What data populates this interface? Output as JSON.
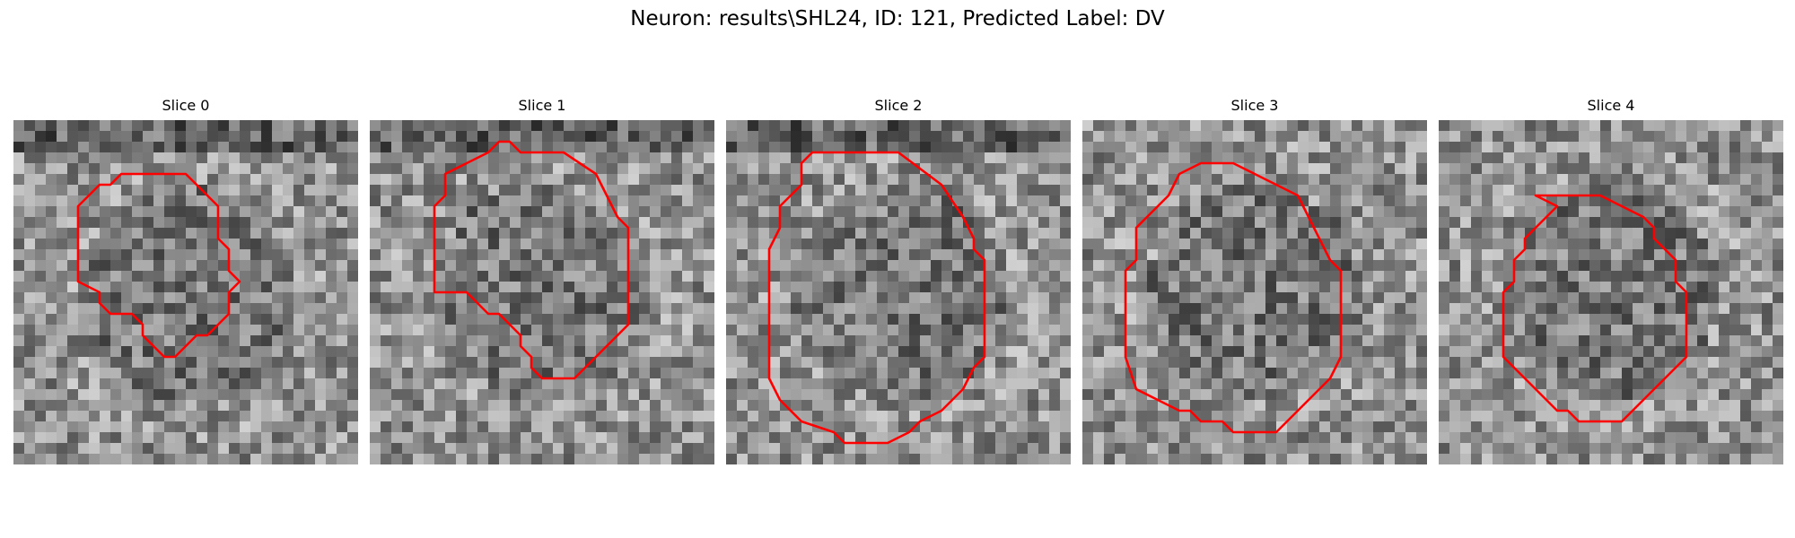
{
  "figure": {
    "title": "Neuron: results\\SHL24, ID: 121, Predicted Label: DV"
  },
  "contour_color": "#ff0000",
  "slices": [
    {
      "title": "Slice 0",
      "contour": [
        [
          10,
          5
        ],
        [
          16,
          5
        ],
        [
          19,
          8
        ],
        [
          19,
          11
        ],
        [
          20,
          12
        ],
        [
          20,
          14
        ],
        [
          21,
          15
        ],
        [
          20,
          16
        ],
        [
          20,
          18
        ],
        [
          19,
          19
        ],
        [
          18,
          20
        ],
        [
          17,
          20
        ],
        [
          16,
          21
        ],
        [
          15,
          22
        ],
        [
          14,
          22
        ],
        [
          13,
          21
        ],
        [
          12,
          20
        ],
        [
          12,
          19
        ],
        [
          11,
          18
        ],
        [
          9,
          18
        ],
        [
          8,
          17
        ],
        [
          8,
          16
        ],
        [
          6,
          15
        ],
        [
          6,
          14
        ],
        [
          6,
          8
        ],
        [
          7,
          7
        ],
        [
          8,
          6
        ],
        [
          9,
          6
        ]
      ]
    },
    {
      "title": "Slice 1",
      "contour": [
        [
          11,
          3
        ],
        [
          12,
          2
        ],
        [
          13,
          2
        ],
        [
          14,
          3
        ],
        [
          18,
          3
        ],
        [
          21,
          5
        ],
        [
          23,
          9
        ],
        [
          24,
          10
        ],
        [
          24,
          19
        ],
        [
          20,
          23
        ],
        [
          19,
          24
        ],
        [
          16,
          24
        ],
        [
          15,
          23
        ],
        [
          15,
          22
        ],
        [
          14,
          21
        ],
        [
          14,
          20
        ],
        [
          13,
          19
        ],
        [
          12,
          18
        ],
        [
          11,
          18
        ],
        [
          10,
          17
        ],
        [
          9,
          16
        ],
        [
          6,
          16
        ],
        [
          6,
          10
        ],
        [
          6,
          8
        ],
        [
          7,
          7
        ],
        [
          7,
          5
        ],
        [
          9,
          4
        ]
      ]
    },
    {
      "title": "Slice 2",
      "contour": [
        [
          8,
          3
        ],
        [
          16,
          3
        ],
        [
          20,
          6
        ],
        [
          22,
          9
        ],
        [
          23,
          11
        ],
        [
          23,
          12
        ],
        [
          24,
          13
        ],
        [
          24,
          22
        ],
        [
          23,
          23
        ],
        [
          22,
          25
        ],
        [
          20,
          27
        ],
        [
          18,
          28
        ],
        [
          17,
          29
        ],
        [
          15,
          30
        ],
        [
          11,
          30
        ],
        [
          10,
          29
        ],
        [
          7,
          28
        ],
        [
          5,
          26
        ],
        [
          4,
          24
        ],
        [
          4,
          22
        ],
        [
          4,
          12
        ],
        [
          5,
          10
        ],
        [
          5,
          8
        ],
        [
          6,
          7
        ],
        [
          7,
          6
        ],
        [
          7,
          4
        ]
      ]
    },
    {
      "title": "Slice 3",
      "contour": [
        [
          11,
          4
        ],
        [
          14,
          4
        ],
        [
          16,
          5
        ],
        [
          18,
          6
        ],
        [
          20,
          7
        ],
        [
          21,
          9
        ],
        [
          22,
          11
        ],
        [
          23,
          13
        ],
        [
          24,
          14
        ],
        [
          24,
          22
        ],
        [
          23,
          24
        ],
        [
          21,
          26
        ],
        [
          20,
          27
        ],
        [
          18,
          29
        ],
        [
          14,
          29
        ],
        [
          13,
          28
        ],
        [
          11,
          28
        ],
        [
          10,
          27
        ],
        [
          9,
          27
        ],
        [
          7,
          26
        ],
        [
          5,
          25
        ],
        [
          4,
          22
        ],
        [
          4,
          14
        ],
        [
          5,
          13
        ],
        [
          5,
          10
        ],
        [
          6,
          9
        ],
        [
          7,
          8
        ],
        [
          8,
          7
        ],
        [
          9,
          5
        ]
      ]
    },
    {
      "title": "Slice 4",
      "contour": [
        [
          9,
          7
        ],
        [
          15,
          7
        ],
        [
          17,
          8
        ],
        [
          19,
          9
        ],
        [
          20,
          10
        ],
        [
          20,
          11
        ],
        [
          21,
          12
        ],
        [
          22,
          13
        ],
        [
          22,
          15
        ],
        [
          23,
          16
        ],
        [
          23,
          22
        ],
        [
          22,
          23
        ],
        [
          21,
          24
        ],
        [
          20,
          25
        ],
        [
          19,
          26
        ],
        [
          18,
          27
        ],
        [
          17,
          28
        ],
        [
          13,
          28
        ],
        [
          12,
          27
        ],
        [
          11,
          27
        ],
        [
          10,
          26
        ],
        [
          9,
          25
        ],
        [
          8,
          24
        ],
        [
          7,
          23
        ],
        [
          6,
          22
        ],
        [
          6,
          16
        ],
        [
          7,
          15
        ],
        [
          7,
          13
        ],
        [
          8,
          12
        ],
        [
          8,
          11
        ],
        [
          9,
          10
        ],
        [
          10,
          9
        ],
        [
          11,
          8
        ]
      ]
    }
  ]
}
